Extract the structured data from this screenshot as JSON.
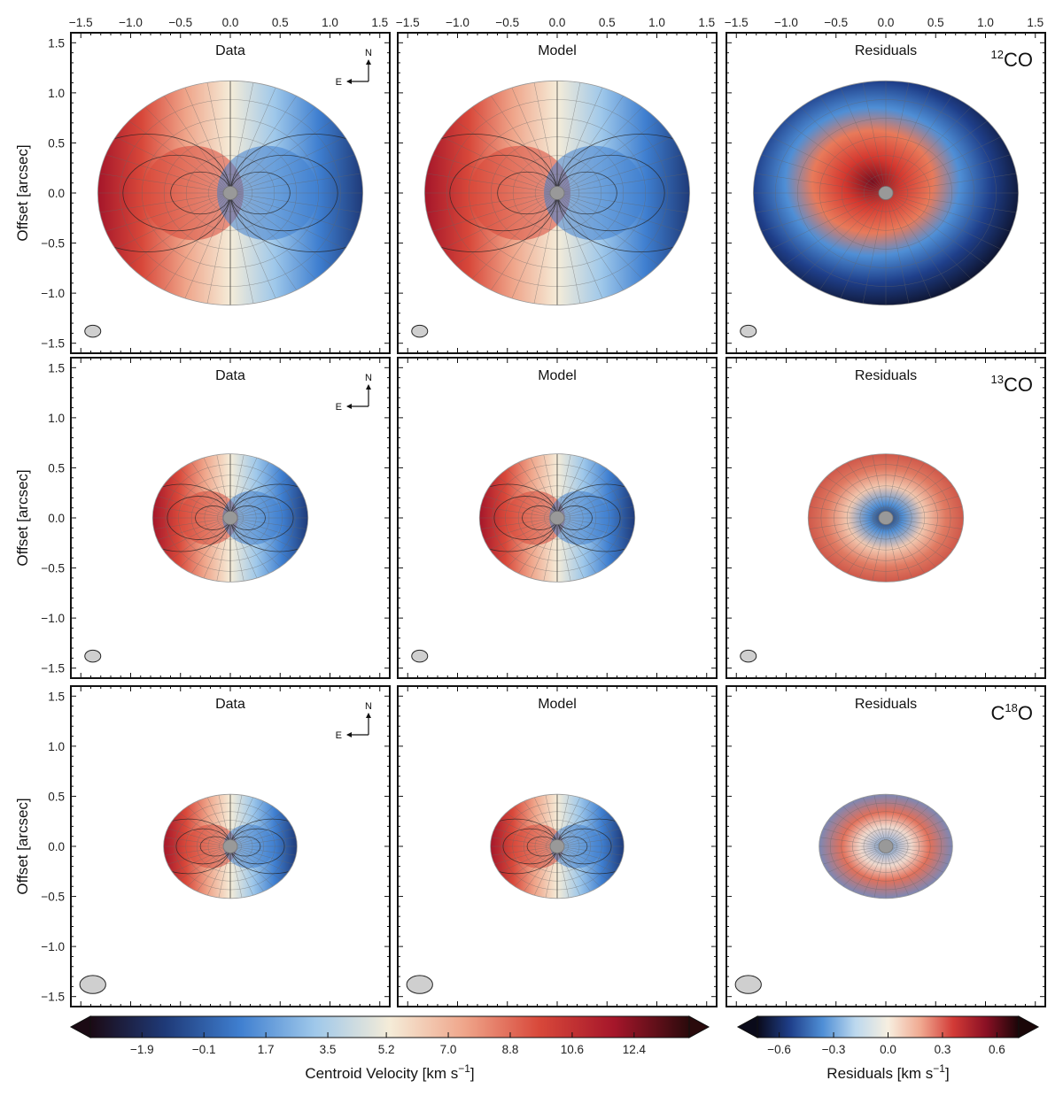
{
  "colors": {
    "velocity_cmap": [
      "#1b0a14",
      "#1f3a78",
      "#3f7fd0",
      "#9fc8ea",
      "#f5ecd8",
      "#efa58a",
      "#d8483a",
      "#a5162a",
      "#2a0a0c"
    ],
    "residual_cmap": [
      "#0a0a1a",
      "#1f3f8a",
      "#4f8fd6",
      "#bcd8ee",
      "#f7efe0",
      "#f0a890",
      "#d23a36",
      "#8a1024",
      "#1a0608"
    ],
    "beam": "#cfcfcf",
    "star": "#999999",
    "grid": "#666666"
  },
  "chart_data": {
    "type": "heatmap",
    "layout": "3x3 panel grid",
    "x_ticks": [
      "−1.5",
      "−1.0",
      "−0.5",
      "0.0",
      "0.5",
      "1.0",
      "1.5"
    ],
    "y_ticks": [
      "1.5",
      "1.0",
      "0.5",
      "0.0",
      "−0.5",
      "−1.0",
      "−1.5"
    ],
    "xlim": [
      -1.6,
      1.6
    ],
    "ylim": [
      -1.6,
      1.6
    ],
    "ylabel": "Offset [arcsec]",
    "compass": {
      "north": "N",
      "east": "E"
    },
    "column_titles": [
      "Data",
      "Model",
      "Residuals"
    ],
    "rows": [
      {
        "molecule_prefix": "",
        "molecule_sup": "12",
        "molecule_main": "CO",
        "disk_radius": [
          1.33,
          1.12
        ],
        "beam_size": [
          0.16,
          0.12
        ]
      },
      {
        "molecule_prefix": "",
        "molecule_sup": "13",
        "molecule_main": "CO",
        "disk_radius": [
          0.78,
          0.64
        ],
        "beam_size": [
          0.16,
          0.12
        ]
      },
      {
        "molecule_prefix": "C",
        "molecule_sup": "18",
        "molecule_main": "O",
        "disk_radius": [
          0.67,
          0.52
        ],
        "beam_size": [
          0.26,
          0.18
        ]
      }
    ],
    "colorbars": [
      {
        "label": "Centroid Velocity [km s−1]",
        "label_main": "Centroid Velocity [km s",
        "label_sup": "−1",
        "label_end": "]",
        "range": [
          -3.4,
          14.0
        ],
        "ticks": [
          -1.9,
          -0.1,
          1.7,
          3.5,
          5.2,
          7.0,
          8.8,
          10.6,
          12.4
        ],
        "tick_labels": [
          "−1.9",
          "−0.1",
          "1.7",
          "3.5",
          "5.2",
          "7.0",
          "8.8",
          "10.6",
          "12.4"
        ]
      },
      {
        "label": "Residuals [km s−1]",
        "label_main": "Residuals [km s",
        "label_sup": "−1",
        "label_end": "]",
        "range": [
          -0.72,
          0.72
        ],
        "ticks": [
          -0.6,
          -0.3,
          0.0,
          0.3,
          0.6
        ],
        "tick_labels": [
          "−0.6",
          "−0.3",
          "0.0",
          "0.3",
          "0.6"
        ]
      }
    ]
  }
}
